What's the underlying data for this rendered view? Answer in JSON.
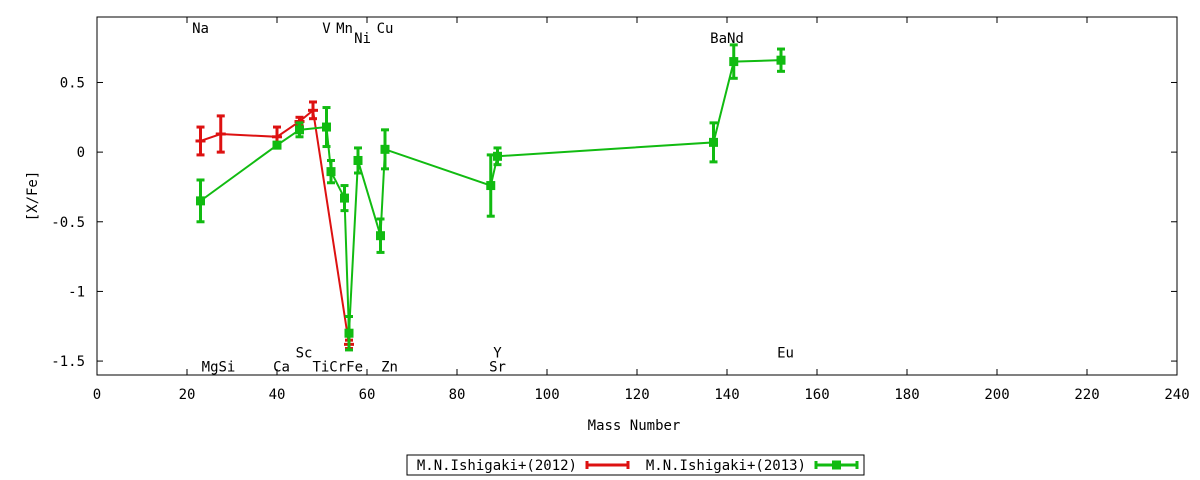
{
  "chart_data": {
    "type": "line",
    "title": "",
    "xlabel": "Mass Number",
    "ylabel": "[X/Fe]",
    "xlim": [
      0,
      240
    ],
    "ylim": [
      -1.6,
      0.97
    ],
    "xticks": [
      0,
      20,
      40,
      60,
      80,
      100,
      120,
      140,
      160,
      180,
      200,
      220,
      240
    ],
    "yticks": [
      -1.5,
      -1,
      -0.5,
      0,
      0.5
    ],
    "ytick_labels": [
      "-1.5",
      "-1",
      "-0.5",
      "0",
      "0.5"
    ],
    "grid": false,
    "legend_position": "bottom-center",
    "series": [
      {
        "name": "M.N.Ishigaki+(2012)",
        "color": "#dd1111",
        "points": [
          {
            "x": 23,
            "y": 0.08,
            "err": 0.1
          },
          {
            "x": 27.5,
            "y": 0.13,
            "err": 0.13
          },
          {
            "x": 40,
            "y": 0.11,
            "err": 0.07
          },
          {
            "x": 45,
            "y": 0.22,
            "err": 0.03
          },
          {
            "x": 48,
            "y": 0.3,
            "err": 0.06
          },
          {
            "x": 56,
            "y": -1.38,
            "err": 0.03
          }
        ]
      },
      {
        "name": "M.N.Ishigaki+(2013)",
        "color": "#11bb11",
        "points": [
          {
            "x": 23,
            "y": -0.35,
            "err": 0.15
          },
          {
            "x": 40,
            "y": 0.05,
            "err": 0.02
          },
          {
            "x": 45,
            "y": 0.16,
            "err": 0.05
          },
          {
            "x": 51,
            "y": 0.18,
            "err": 0.14
          },
          {
            "x": 52,
            "y": -0.14,
            "err": 0.08
          },
          {
            "x": 55,
            "y": -0.33,
            "err": 0.09
          },
          {
            "x": 56,
            "y": -1.3,
            "err": 0.12
          },
          {
            "x": 58,
            "y": -0.06,
            "err": 0.09
          },
          {
            "x": 63,
            "y": -0.6,
            "err": 0.12
          },
          {
            "x": 64,
            "y": 0.02,
            "err": 0.14
          },
          {
            "x": 87.5,
            "y": -0.24,
            "err": 0.22
          },
          {
            "x": 89,
            "y": -0.03,
            "err": 0.06
          },
          {
            "x": 137,
            "y": 0.07,
            "err": 0.14
          },
          {
            "x": 141.5,
            "y": 0.65,
            "err": 0.12
          },
          {
            "x": 152,
            "y": 0.66,
            "err": 0.08
          }
        ]
      }
    ],
    "element_labels": [
      {
        "text": "Na",
        "x": 23,
        "y": 0.89
      },
      {
        "text": "V",
        "x": 51,
        "y": 0.89
      },
      {
        "text": "Mn",
        "x": 55,
        "y": 0.89
      },
      {
        "text": "Cu",
        "x": 64,
        "y": 0.89
      },
      {
        "text": "Ni",
        "x": 59,
        "y": 0.82
      },
      {
        "text": "BaNd",
        "x": 140,
        "y": 0.82
      },
      {
        "text": "Sc",
        "x": 46,
        "y": -1.44
      },
      {
        "text": "Y",
        "x": 89,
        "y": -1.44
      },
      {
        "text": "Eu",
        "x": 153,
        "y": -1.44
      },
      {
        "text": "MgSi",
        "x": 27,
        "y": -1.54
      },
      {
        "text": "Ca",
        "x": 41,
        "y": -1.54
      },
      {
        "text": "TiCrFe",
        "x": 53.5,
        "y": -1.54
      },
      {
        "text": "Zn",
        "x": 65,
        "y": -1.54
      },
      {
        "text": "Sr",
        "x": 89,
        "y": -1.54
      }
    ]
  }
}
